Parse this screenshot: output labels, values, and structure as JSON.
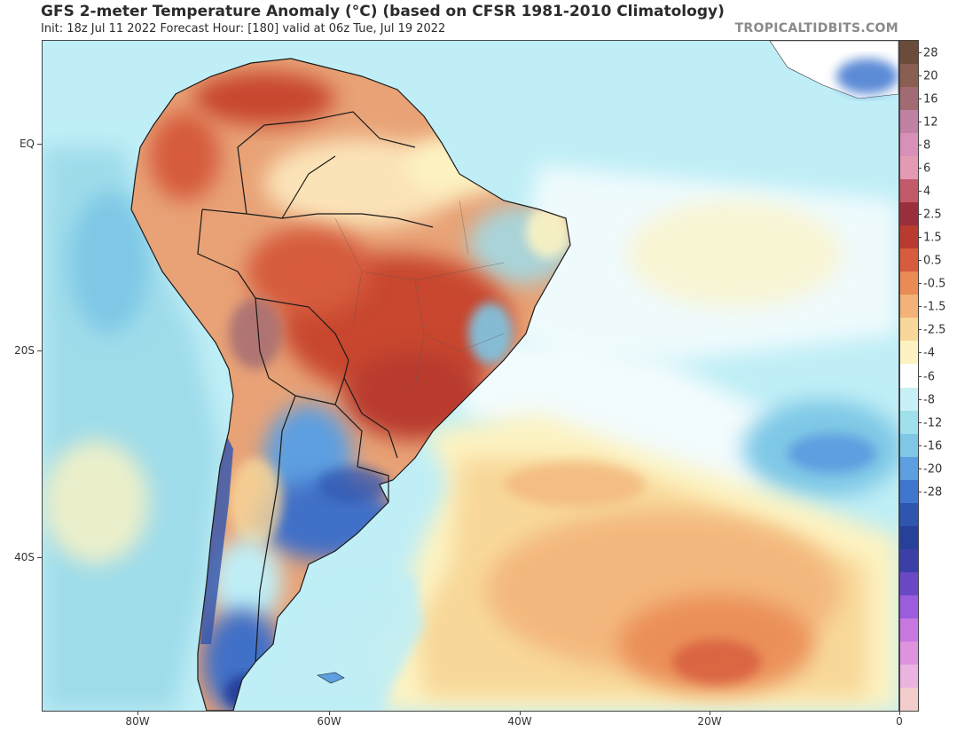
{
  "header": {
    "title": "GFS 2-meter Temperature Anomaly (°C) (based on CFSR 1981-2010 Climatology)",
    "subtitle": "Init: 18z Jul 11 2022   Forecast Hour: [180]   valid at 06z Tue, Jul 19 2022",
    "brand": "TROPICALTIDBITS.COM"
  },
  "map": {
    "region": "South America and South Atlantic",
    "lat_labels": [
      "EQ",
      "20S",
      "40S"
    ],
    "lon_labels": [
      "80W",
      "60W",
      "40W",
      "20W",
      "0"
    ],
    "colors": {
      "ocean_base": "#bfeef6",
      "land_warm": "#e6a070",
      "land_hot": "#c8472e",
      "land_cold": "#3f6fc8",
      "atlantic_warm": "#f7d3a0",
      "atlantic_hot": "#e98a5a",
      "border": "#1a1a1a"
    }
  },
  "colorbar": {
    "labels": [
      "28",
      "20",
      "16",
      "12",
      "8",
      "6",
      "4",
      "2.5",
      "1.5",
      "0.5",
      "-0.5",
      "-1.5",
      "-2.5",
      "-4",
      "-6",
      "-8",
      "-12",
      "-16",
      "-20",
      "-28"
    ],
    "colors": [
      "#6b4b3a",
      "#8b5e52",
      "#a26a72",
      "#c081a2",
      "#d88fb8",
      "#e59ab4",
      "#c25a6a",
      "#9a2f3b",
      "#b93a2f",
      "#d65c3d",
      "#ea8b55",
      "#f3b278",
      "#f8d89a",
      "#fdf3c2",
      "#ffffff",
      "#c9f0f6",
      "#9fe0ec",
      "#7ec8e6",
      "#5d9fe0",
      "#3f77cf",
      "#2e55b0",
      "#27409a",
      "#3c3fa8",
      "#6b49c6",
      "#9b5dde",
      "#c778e0",
      "#dd93dd",
      "#ebb3df",
      "#f3cccc"
    ]
  }
}
